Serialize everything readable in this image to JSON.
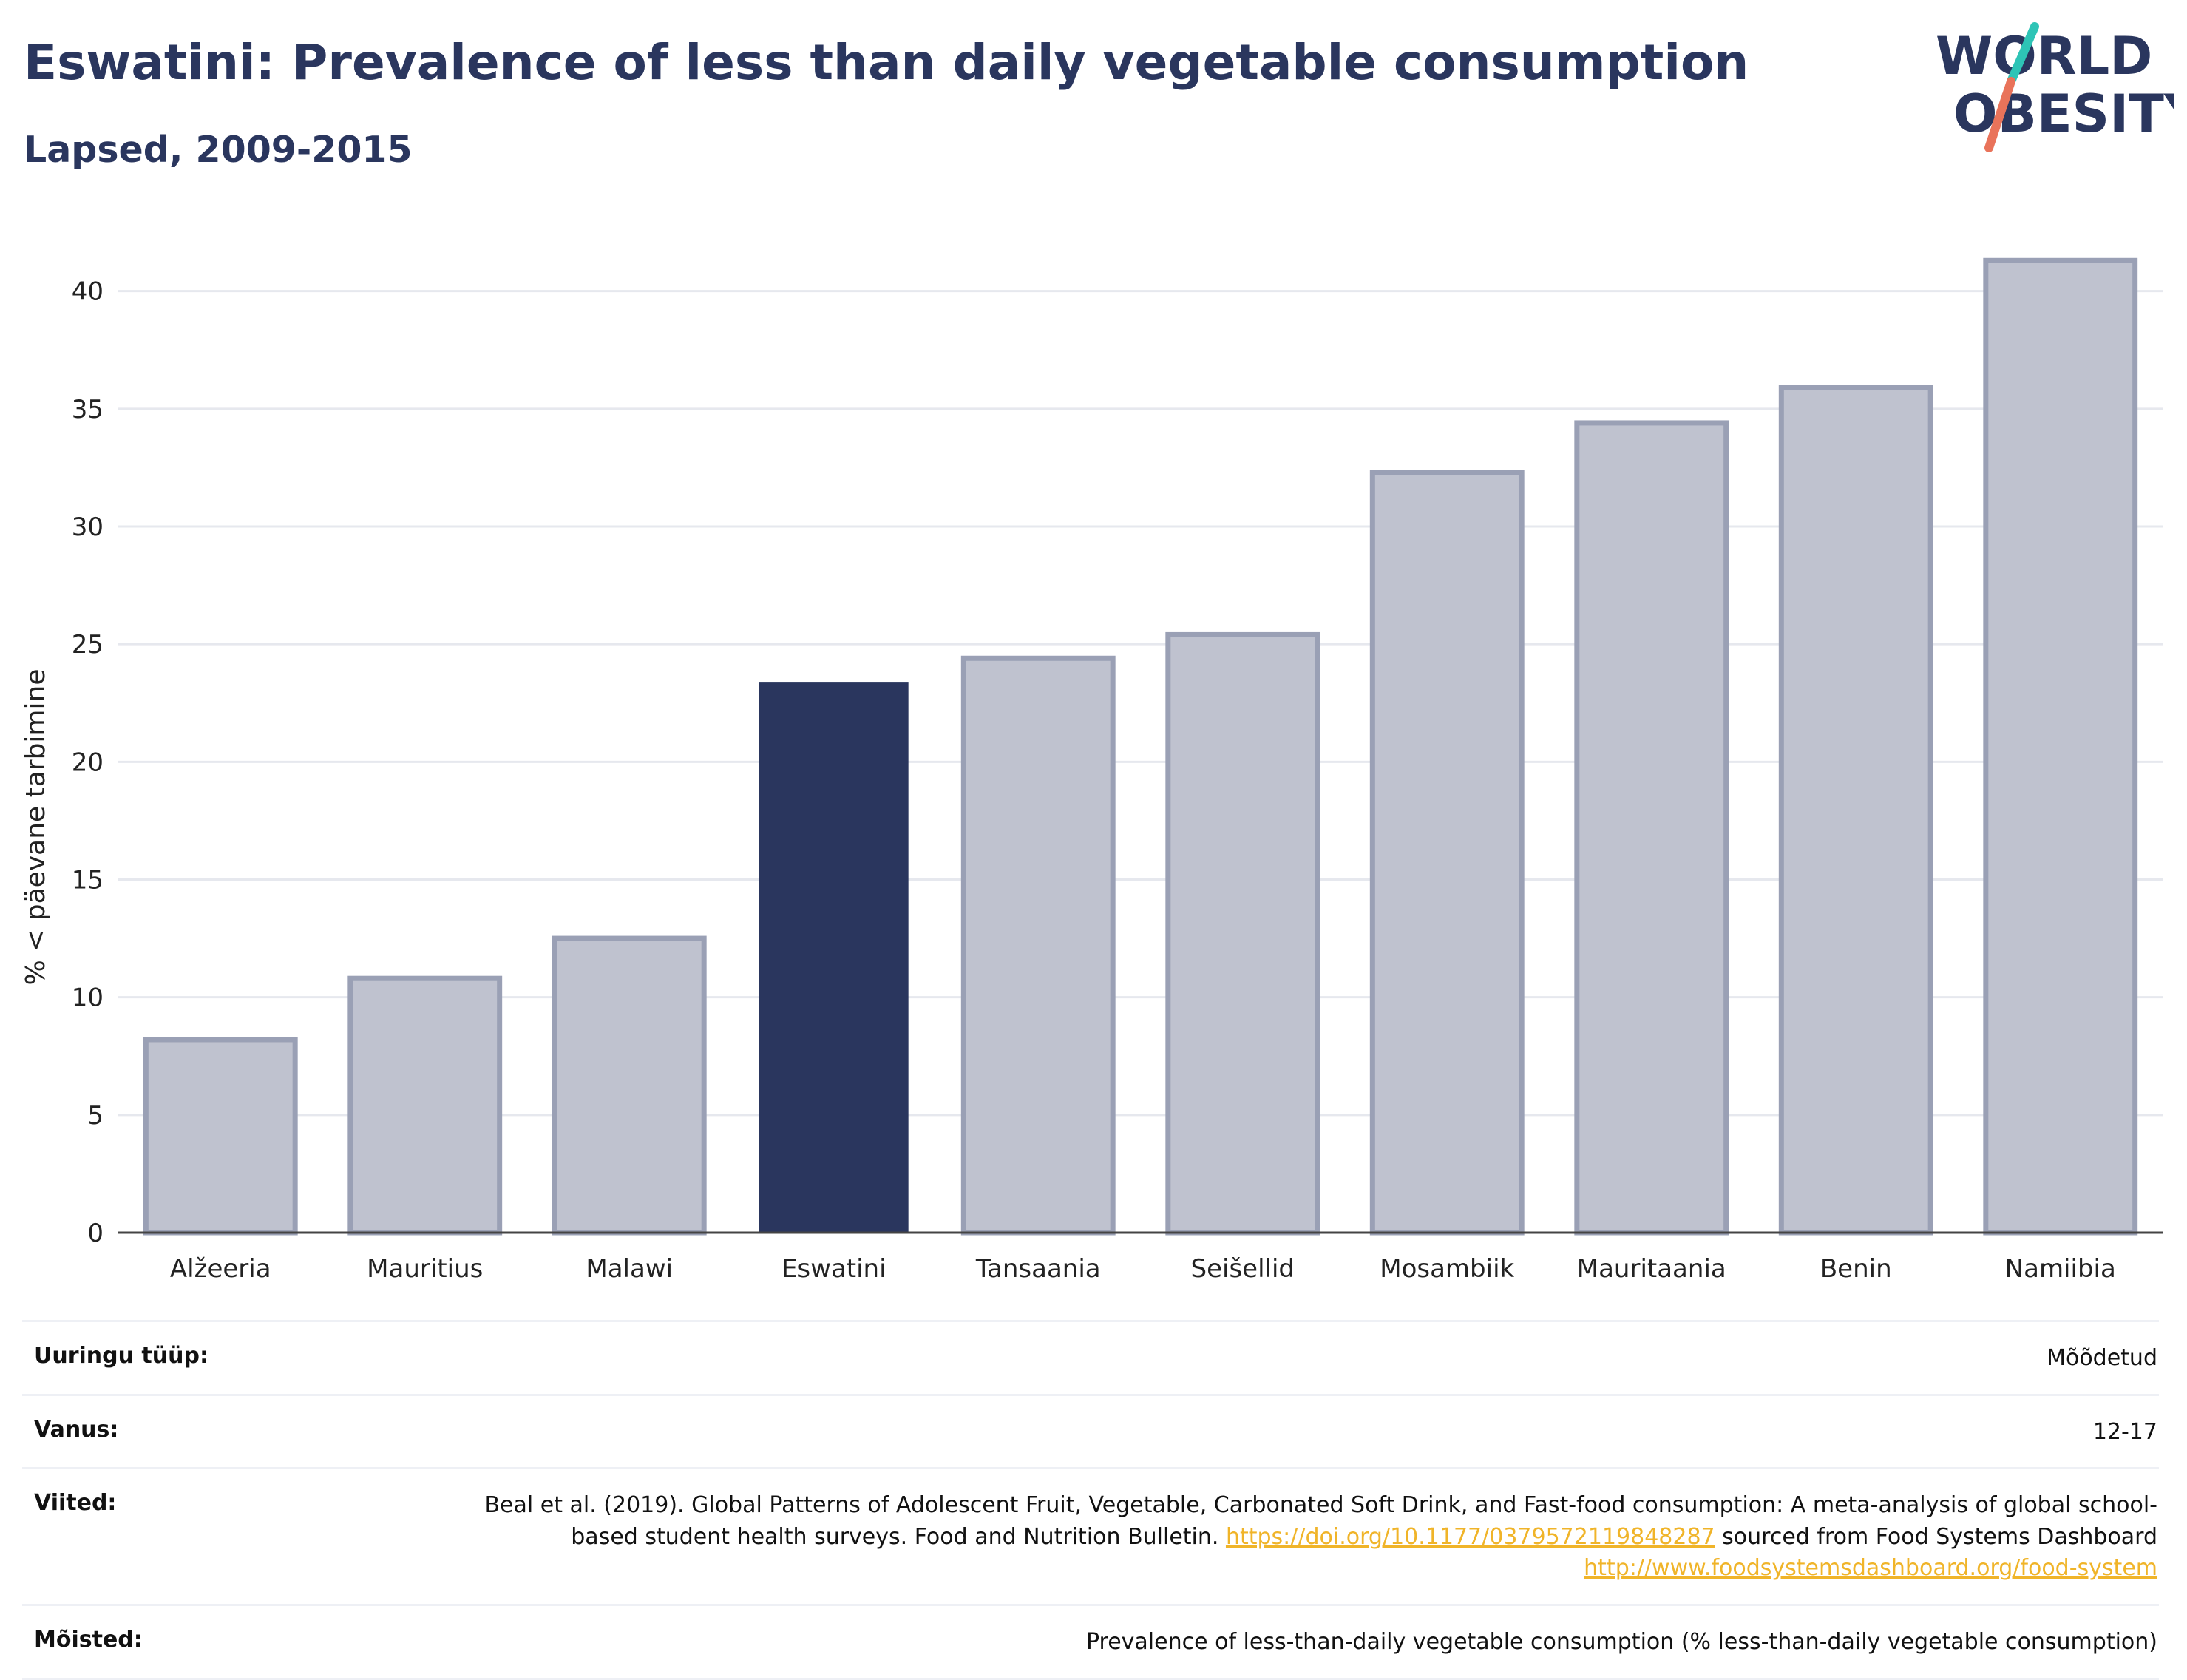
{
  "header": {
    "title": "Eswatini: Prevalence of less than daily vegetable consumption",
    "subtitle": "Lapsed, 2009-2015"
  },
  "logo": {
    "line1": "WORLD",
    "line2": "OBESITY",
    "accent_teal": "#2ec4b6",
    "accent_coral": "#e9735a"
  },
  "chart_data": {
    "type": "bar",
    "categories": [
      "Alžeeria",
      "Mauritius",
      "Malawi",
      "Eswatini",
      "Tansaania",
      "Seišellid",
      "Mosambiik",
      "Mauritaania",
      "Benin",
      "Namiibia"
    ],
    "values": [
      8.2,
      10.8,
      12.5,
      23.4,
      24.4,
      25.4,
      32.3,
      34.4,
      35.9,
      41.3
    ],
    "highlight": "Eswatini",
    "ylabel": "% < päevane tarbimine",
    "ylim": [
      0,
      42
    ],
    "yticks": [
      0,
      5,
      10,
      15,
      20,
      25,
      30,
      35,
      40
    ],
    "grid": true,
    "colors": {
      "highlight": "#2a365e",
      "other_fill": "#bfc2cf",
      "other_stroke": "#9aa0b5"
    }
  },
  "info": [
    {
      "label": "Uuringu tüüp:",
      "value": "Mõõdetud"
    },
    {
      "label": "Vanus:",
      "value": "12-17"
    },
    {
      "label": "Viited:",
      "text1": "Beal et al. (2019). Global Patterns of Adolescent Fruit, Vegetable, Carbonated Soft Drink, and Fast-food consumption: A meta-analysis of global school-based student health surveys. Food and Nutrition Bulletin. ",
      "link1": "https://doi.org/10.1177/0379572119848287",
      "text2": " sourced from Food Systems Dashboard ",
      "link2": "http://www.foodsystemsdashboard.org/food-system"
    },
    {
      "label": "Mõisted:",
      "value": "Prevalence of less-than-daily vegetable consumption (% less-than-daily vegetable consumption)"
    }
  ]
}
